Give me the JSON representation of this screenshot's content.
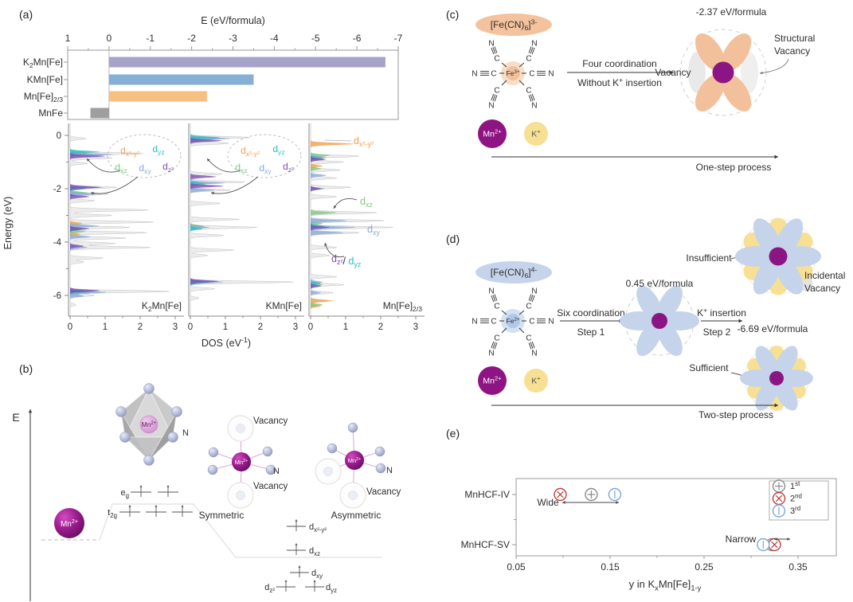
{
  "panels": {
    "a": {
      "label": "(a)"
    },
    "b": {
      "label": "(b)",
      "axis_label": "E",
      "mn_ion": "Mn^2+^",
      "nitrogen": "N",
      "eg": "e~g~",
      "t2g": "t~2g~",
      "symmetric": "Symmetric",
      "asymmetric": "Asymmetric",
      "vacancy": "Vacancy",
      "levels": {
        "dx2y2": "d~x²-y²~",
        "dxz": "d~xz~",
        "dxy": "d~xy~",
        "dz2": "d~z²~",
        "dyz": "d~yz~"
      }
    },
    "c": {
      "label": "(c)",
      "complex_label": "[Fe(CN)~6~]^3-^",
      "fe_label": "Fe^3+^",
      "c_atom": "C",
      "n_atom": "N",
      "mn_ion": "Mn^2+^",
      "k_ion": "K^+^",
      "energy": "-2.37 eV/formula",
      "arrow_line1": "Four coordination",
      "arrow_line2": "Without K^+^ insertion",
      "vacancy": "Vacancy",
      "structural_vacancy": [
        "Structural",
        "Vacancy"
      ],
      "process": "One-step process"
    },
    "d": {
      "label": "(d)",
      "complex_label": "[Fe(CN)~6~]^4-^",
      "fe_label": "Fe^2+^",
      "c_atom": "C",
      "n_atom": "N",
      "mn_ion": "Mn^2+^",
      "k_ion": "K^+^",
      "step1_line1": "Six coordination",
      "step1_line2": "Step 1",
      "mid_energy": "0.45 eV/formula",
      "step2_line1": "K^+^ insertion",
      "step2_line2": "Step 2",
      "insufficient": "Insufficient",
      "sufficient": "Sufficient",
      "incidental_vacancy": [
        "Incidental",
        "Vacancy"
      ],
      "final_energy": "-6.69 eV/formula",
      "process": "Two-step process"
    },
    "e": {
      "label": "(e)"
    }
  },
  "colors": {
    "bar_k2": "#a6a2c8",
    "bar_k": "#85afd5",
    "bar_23": "#f7bf80",
    "bar_mnfe": "#9e9e9e",
    "dos_total": "#ececec",
    "dos_total_stroke": "#c2c2c2",
    "dos_dx2y2": "#f0a04b",
    "dos_dyz": "#2fbfc7",
    "dos_dxz": "#7dc87e",
    "dos_dxy": "#87a9d8",
    "dos_dz2": "#7c4eb4",
    "petal_orange": "#f3c09c",
    "petal_blue": "#c5d4ea",
    "petal_gray": "#e9e9e9",
    "k_yellow": "#f7e093",
    "mn_purple": "#8e1483",
    "flower_center": "#8b1683",
    "oval_c": "#f4c29c",
    "oval_d": "#c6d4eb",
    "scatter_1st": "#8a8a8a",
    "scatter_2nd": "#c43c3c",
    "scatter_3rd": "#7ba7d4"
  },
  "chart_data": [
    {
      "id": "formation-energy-bars",
      "type": "bar",
      "orientation": "horizontal",
      "title": "E (eV/formula)",
      "categories": [
        "K~2~Mn[Fe]",
        "KMn[Fe]",
        "Mn[Fe]~2/3~",
        "MnFe"
      ],
      "values": [
        -6.69,
        -3.5,
        -2.37,
        0.45
      ],
      "bar_color_keys": [
        "bar_k2",
        "bar_k",
        "bar_23",
        "bar_mnfe"
      ],
      "axis_ticks": [
        1,
        0,
        -1,
        -2,
        -3,
        -4,
        -5,
        -6,
        -7
      ],
      "xlim": [
        1,
        -7
      ]
    },
    {
      "id": "dos",
      "type": "area",
      "xlabel": "DOS (eV^-1^)",
      "ylabel": "Energy (eV)",
      "x_ticks": [
        0,
        1,
        2,
        3
      ],
      "y_ticks": [
        0,
        -2,
        -4,
        -6
      ],
      "ylim": [
        0.45,
        -6.78
      ],
      "oval_labels": [
        {
          "t": "d~x²-y²~",
          "series": "dx2y2"
        },
        {
          "t": "d~yz~",
          "series": "dyz"
        },
        {
          "t": "d~xz~",
          "series": "dxz"
        },
        {
          "t": "d~xy~",
          "series": "dxy"
        },
        {
          "t": "d~z²~",
          "series": "dz2"
        }
      ],
      "panel3_labels": {
        "dx2y2": [
          {
            "t": "d~x²-y²~",
            "series": "dx2y2"
          }
        ],
        "dxz": [
          {
            "t": "d~xz~",
            "series": "dxz"
          }
        ],
        "dxy": [
          {
            "t": "d~xy~",
            "series": "dxy"
          }
        ],
        "dz2dyz": [
          {
            "t": "d~z²~",
            "series": "dz2"
          },
          {
            "t": "/ ",
            "series": null
          },
          {
            "t": "d~yz~",
            "series": "dyz"
          }
        ]
      },
      "panels": [
        {
          "name": "K~2~Mn[Fe]",
          "series": {
            "total": [
              [
                -0.12,
                0.45
              ],
              [
                -0.68,
                2.1
              ],
              [
                -0.85,
                1.2
              ],
              [
                -1.05,
                0.5
              ],
              [
                -1.95,
                1.35
              ],
              [
                -2.2,
                1.1
              ],
              [
                -2.45,
                0.7
              ],
              [
                -2.8,
                2.25
              ],
              [
                -3.0,
                1.2
              ],
              [
                -3.25,
                2.4
              ],
              [
                -3.45,
                1.7
              ],
              [
                -3.65,
                2.2
              ],
              [
                -3.85,
                1.6
              ],
              [
                -4.05,
                1.3
              ],
              [
                -4.2,
                2.3
              ],
              [
                -4.6,
                0.95
              ],
              [
                -4.75,
                0.4
              ],
              [
                -5.85,
                2.85
              ],
              [
                -6.0,
                0.7
              ],
              [
                -6.35,
                0.18
              ]
            ],
            "dx2y2": [
              [
                -0.65,
                0.5
              ],
              [
                -3.3,
                0.35
              ],
              [
                -3.7,
                0.3
              ],
              [
                -5.85,
                0.55
              ]
            ],
            "dyz": [
              [
                -0.62,
                0.85
              ],
              [
                -2.0,
                0.45
              ],
              [
                -3.5,
                0.4
              ],
              [
                -5.85,
                0.65
              ]
            ],
            "dxz": [
              [
                -0.7,
                0.65
              ],
              [
                -2.15,
                0.5
              ],
              [
                -3.6,
                0.45
              ],
              [
                -5.9,
                0.5
              ]
            ],
            "dxy": [
              [
                -0.72,
                1.25
              ],
              [
                -1.95,
                0.95
              ],
              [
                -2.2,
                0.75
              ],
              [
                -3.4,
                0.85
              ],
              [
                -3.8,
                0.6
              ],
              [
                -4.2,
                0.5
              ],
              [
                -5.88,
                1.05
              ],
              [
                -6.02,
                0.4
              ]
            ],
            "dz2": [
              [
                -0.78,
                1.0
              ],
              [
                -1.95,
                0.85
              ],
              [
                -2.3,
                0.55
              ],
              [
                -3.5,
                0.55
              ],
              [
                -4.15,
                0.4
              ],
              [
                -5.82,
                0.85
              ]
            ]
          }
        },
        {
          "name": "KMn[Fe]",
          "series": {
            "total": [
              [
                -0.08,
                1.7
              ],
              [
                -0.3,
                1.1
              ],
              [
                -1.45,
                0.9
              ],
              [
                -1.75,
                1.55
              ],
              [
                -2.05,
                1.15
              ],
              [
                -2.55,
                0.85
              ],
              [
                -3.15,
                1.4
              ],
              [
                -3.45,
                1.9
              ],
              [
                -3.75,
                0.95
              ],
              [
                -4.3,
                1.25
              ],
              [
                -4.5,
                0.5
              ],
              [
                -5.5,
                2.95
              ],
              [
                -5.75,
                0.7
              ],
              [
                -6.1,
                0.25
              ]
            ],
            "dx2y2": [
              [
                -0.12,
                0.75
              ],
              [
                -3.4,
                0.3
              ],
              [
                -5.5,
                0.75
              ]
            ],
            "dyz": [
              [
                -0.08,
                0.85
              ],
              [
                -1.8,
                0.4
              ],
              [
                -3.5,
                0.35
              ],
              [
                -5.5,
                0.6
              ]
            ],
            "dxz": [
              [
                -0.18,
                0.65
              ],
              [
                -1.85,
                0.45
              ],
              [
                -3.4,
                0.4
              ],
              [
                -5.52,
                0.5
              ]
            ],
            "dxy": [
              [
                -0.12,
                1.15
              ],
              [
                -1.78,
                1.0
              ],
              [
                -2.05,
                0.7
              ],
              [
                -3.45,
                0.55
              ],
              [
                -5.5,
                0.95
              ]
            ],
            "dz2": [
              [
                -0.2,
                0.9
              ],
              [
                -1.55,
                0.75
              ],
              [
                -1.9,
                0.95
              ],
              [
                -5.47,
                0.8
              ]
            ]
          }
        },
        {
          "name": "Mn[Fe]~2/3~",
          "series": {
            "total": [
              [
                -0.78,
                1.4
              ],
              [
                -1.0,
                0.95
              ],
              [
                -1.3,
                0.85
              ],
              [
                -1.6,
                0.75
              ],
              [
                -1.95,
                1.15
              ],
              [
                -2.3,
                0.75
              ],
              [
                -2.9,
                1.9
              ],
              [
                -3.2,
                2.1
              ],
              [
                -3.45,
                2.35
              ],
              [
                -3.65,
                1.4
              ],
              [
                -4.2,
                0.75
              ],
              [
                -4.5,
                0.55
              ],
              [
                -5.3,
                0.75
              ],
              [
                -5.6,
                0.95
              ],
              [
                -5.9,
                0.65
              ],
              [
                -6.2,
                0.5
              ]
            ],
            "dx2y2": [
              [
                -0.32,
                1.25
              ],
              [
                -0.9,
                0.45
              ],
              [
                -1.15,
                0.35
              ],
              [
                -6.2,
                0.65
              ],
              [
                -6.4,
                0.3
              ]
            ],
            "dxz": [
              [
                -0.75,
                0.55
              ],
              [
                -1.25,
                0.3
              ],
              [
                -2.9,
                0.75
              ],
              [
                -3.3,
                0.35
              ],
              [
                -5.6,
                0.35
              ],
              [
                -6.35,
                0.35
              ]
            ],
            "dxy": [
              [
                -0.82,
                0.45
              ],
              [
                -1.5,
                0.45
              ],
              [
                -2.0,
                0.4
              ],
              [
                -3.2,
                1.05
              ],
              [
                -3.45,
                1.3
              ],
              [
                -3.65,
                0.95
              ],
              [
                -5.5,
                0.35
              ],
              [
                -5.9,
                0.3
              ]
            ],
            "dyz": [
              [
                -0.85,
                0.35
              ],
              [
                -3.4,
                0.4
              ],
              [
                -5.55,
                0.3
              ]
            ],
            "dz2": [
              [
                -0.9,
                0.4
              ],
              [
                -2.0,
                0.3
              ],
              [
                -3.45,
                0.55
              ],
              [
                -5.65,
                0.3
              ]
            ]
          }
        }
      ]
    },
    {
      "id": "vacancy-scatter",
      "type": "scatter",
      "categories": [
        "MnHCF-IV",
        "MnHCF-SV"
      ],
      "xlabel": "y in K~x~Mn[Fe]~1-y~",
      "x_ticks": [
        0.05,
        0.15,
        0.25,
        0.35
      ],
      "xlim": [
        0.05,
        0.35
      ],
      "legend_position": "top-right",
      "series": [
        {
          "name": "1^st^",
          "color_key": "scatter_1st",
          "symbol": "circle-plus",
          "points": [
            {
              "category": "MnHCF-IV",
              "x": 0.13
            },
            {
              "category": "MnHCF-SV",
              "x": 0.322
            }
          ]
        },
        {
          "name": "2^nd^",
          "color_key": "scatter_2nd",
          "symbol": "circle-x",
          "points": [
            {
              "category": "MnHCF-IV",
              "x": 0.097
            },
            {
              "category": "MnHCF-SV",
              "x": 0.325
            }
          ]
        },
        {
          "name": "3^rd^",
          "color_key": "scatter_3rd",
          "symbol": "circle-bar",
          "points": [
            {
              "category": "MnHCF-IV",
              "x": 0.155
            },
            {
              "category": "MnHCF-SV",
              "x": 0.313
            }
          ]
        }
      ],
      "annotations": [
        {
          "text": "Wide",
          "row": "MnHCF-IV"
        },
        {
          "text": "Narrow",
          "row": "MnHCF-SV"
        }
      ]
    }
  ]
}
